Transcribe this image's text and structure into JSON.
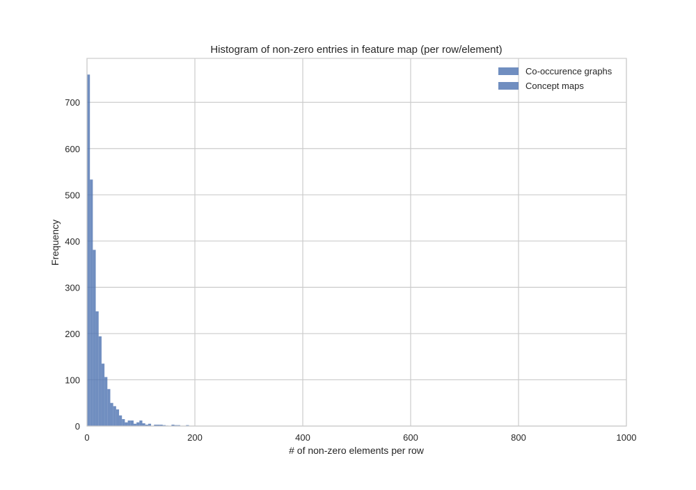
{
  "colors": {
    "background": "#ffffff",
    "plot_background": "#ffffff",
    "grid": "#cbcbcb",
    "frame": "#cbcbcb",
    "text": "#262626",
    "bar_fill": "#4c72b0",
    "bar_opacity": "0.8"
  },
  "chart_data": {
    "type": "bar",
    "title": "Histogram of non-zero entries in feature map (per row/element)",
    "xlabel": "# of non-zero elements per row",
    "ylabel": "Frequency",
    "xlim": [
      0,
      1000
    ],
    "ylim": [
      0,
      795
    ],
    "grid": true,
    "legend_position": "top-right",
    "x_ticks": [
      0,
      200,
      400,
      600,
      800,
      1000
    ],
    "y_ticks": [
      0,
      100,
      200,
      300,
      400,
      500,
      600,
      700
    ],
    "bin_width": 5.4,
    "series": [
      {
        "name": "Co-occurence graphs",
        "bin_edges_start": 0,
        "values": [
          760,
          533,
          381,
          248,
          194,
          135,
          106,
          80,
          50,
          43,
          36,
          23,
          15,
          8,
          12,
          12,
          5,
          8,
          12,
          6,
          3,
          5,
          0,
          3,
          3,
          3,
          2,
          1,
          0,
          3,
          2,
          2,
          0,
          0,
          2
        ]
      },
      {
        "name": "Concept maps",
        "bin_edges_start": 0,
        "values": []
      }
    ]
  }
}
